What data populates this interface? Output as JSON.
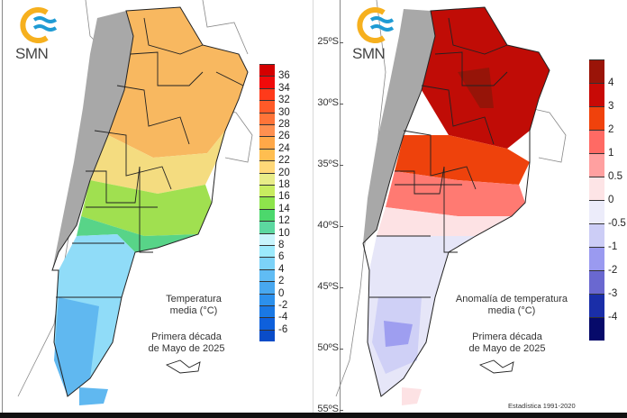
{
  "logo": {
    "text": "SMN"
  },
  "left_map": {
    "caption_line1": "Temperatura",
    "caption_line2": "media (°C)",
    "period_line1": "Primera década",
    "period_line2": "de Mayo de 2025",
    "colorbar_labels": [
      "36",
      "34",
      "32",
      "30",
      "28",
      "26",
      "24",
      "22",
      "20",
      "18",
      "16",
      "14",
      "12",
      "10",
      "8",
      "6",
      "4",
      "2",
      "0",
      "-2",
      "-4",
      "-6"
    ],
    "colorbar_colors": [
      "#d40000",
      "#f00a0a",
      "#ff3a1a",
      "#ff5a28",
      "#ff7438",
      "#ff9050",
      "#ffa848",
      "#ffbe50",
      "#ffd878",
      "#e8ec88",
      "#c8ec60",
      "#8ee44c",
      "#4cd86c",
      "#5cd8a0",
      "#c8f4fc",
      "#9ceafc",
      "#7cd2f8",
      "#60bcf4",
      "#48a8f0",
      "#2c90ec",
      "#1a78e4",
      "#0e60dc",
      "#0a4cc8"
    ]
  },
  "right_map": {
    "caption_line1": "Anomalía de temperatura",
    "caption_line2": "media (°C)",
    "period_line1": "Primera década",
    "period_line2": "de Mayo de 2025",
    "statistics": "Estadística 1991-2020",
    "latitude_labels": [
      "25ºS",
      "30ºS",
      "35ºS",
      "40ºS",
      "45ºS",
      "50ºS",
      "55ºS"
    ],
    "colorbar_labels": [
      "4",
      "3",
      "2",
      "1",
      "0.5",
      "0",
      "-0.5",
      "-1",
      "-2",
      "-3",
      "-4"
    ],
    "colorbar_colors": [
      "#9a1408",
      "#c80a06",
      "#f0420c",
      "#ff6a64",
      "#ffa0a0",
      "#fde4e6",
      "#ececfa",
      "#cccdf6",
      "#9a9af0",
      "#6a68d0",
      "#1a2ea8",
      "#060a6a"
    ]
  }
}
